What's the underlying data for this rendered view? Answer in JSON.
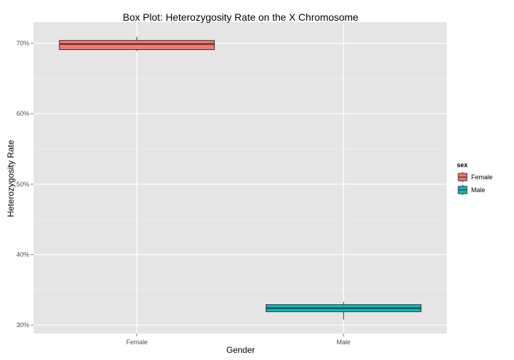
{
  "chart_data": {
    "type": "boxplot",
    "title": "Box Plot: Heterozygosity Rate on the X Chromosome",
    "xlabel": "Gender",
    "ylabel": "Heterozygosity Rate",
    "categories": [
      "Female",
      "Male"
    ],
    "y_ticks": [
      30,
      40,
      50,
      60,
      70
    ],
    "y_tick_labels": [
      "30%",
      "40%",
      "50%",
      "60%",
      "70%"
    ],
    "ylim": [
      28.8,
      73.0
    ],
    "boxes": [
      {
        "category": "Female",
        "min": 68.9,
        "q1": 69.1,
        "median": 69.9,
        "q3": 70.4,
        "max": 70.9
      },
      {
        "category": "Male",
        "min": 30.8,
        "q1": 31.9,
        "median": 32.4,
        "q3": 32.9,
        "max": 33.3
      }
    ],
    "grid": true,
    "legend": {
      "title": "sex",
      "position": "right",
      "items": [
        {
          "label": "Female",
          "color": "#F8766D"
        },
        {
          "label": "Male",
          "color": "#00BFC4"
        }
      ]
    },
    "colors": {
      "panel_background": "#E5E5E5",
      "grid_major": "#FFFFFF",
      "grid_minor": "#F2F2F2",
      "box_outline": "#333333"
    }
  }
}
